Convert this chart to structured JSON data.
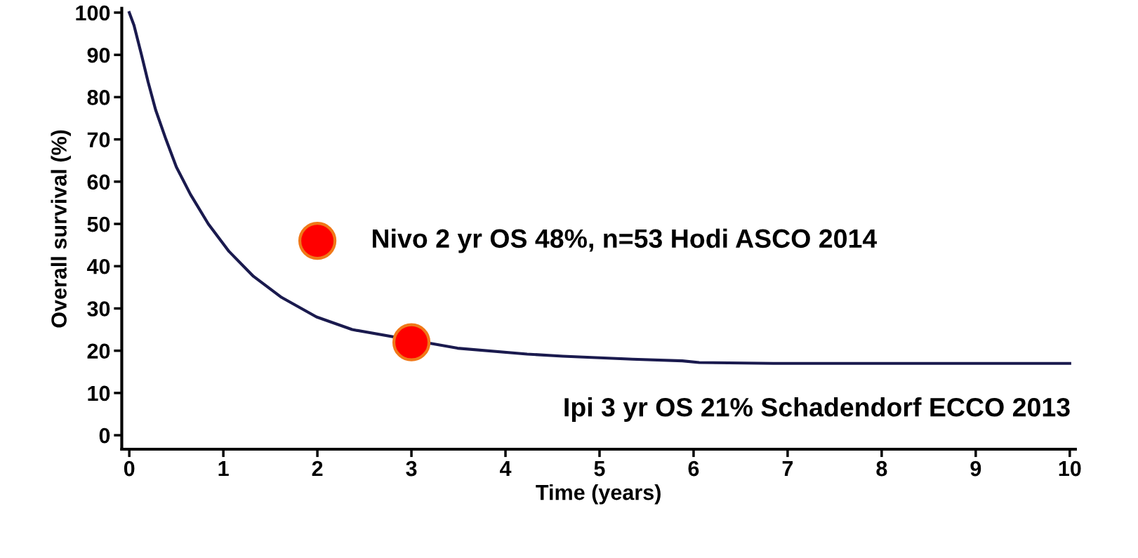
{
  "chart_data": {
    "type": "line",
    "xlabel": "Time (years)",
    "ylabel": "Overall survival (%)",
    "xlim": [
      -0.08,
      10.06
    ],
    "ylim": [
      -3.3,
      101
    ],
    "xticks": [
      0,
      1,
      2,
      3,
      4,
      5,
      6,
      7,
      8,
      9,
      10
    ],
    "yticks": [
      0,
      10,
      20,
      30,
      40,
      50,
      60,
      70,
      80,
      90,
      100
    ],
    "line_style": "solid",
    "series": [
      {
        "color": "#1a1a4e",
        "marker": "none",
        "x": [
          0,
          0.05,
          0.13,
          0.2,
          0.28,
          0.39,
          0.5,
          0.65,
          0.84,
          1.06,
          1.32,
          1.62,
          1.99,
          2.37,
          3.49,
          4.23,
          4.61,
          5.35,
          5.88,
          6.06,
          6.85,
          10.0
        ],
        "values": [
          100,
          97,
          90,
          83.6,
          77,
          70,
          63.5,
          57,
          50,
          43.5,
          37.6,
          32.6,
          28,
          25,
          20.6,
          19.2,
          18.7,
          18,
          17.6,
          17.2,
          17,
          17
        ]
      },
      {
        "type": "scatter",
        "marker": "circle",
        "color": "#ff0000",
        "x": [
          2
        ],
        "values": [
          46
        ]
      },
      {
        "type": "scatter",
        "marker": "circle",
        "color": "#ff0000",
        "x": [
          3
        ],
        "values": [
          22
        ]
      }
    ],
    "annotations": [
      {
        "text": "Nivo 2 yr OS 48%, n=53 Hodi ASCO 2014",
        "x": 2,
        "y": 46
      },
      "Ipi 3 yr OS 21% Schadendorf ECCO 2013"
    ]
  }
}
